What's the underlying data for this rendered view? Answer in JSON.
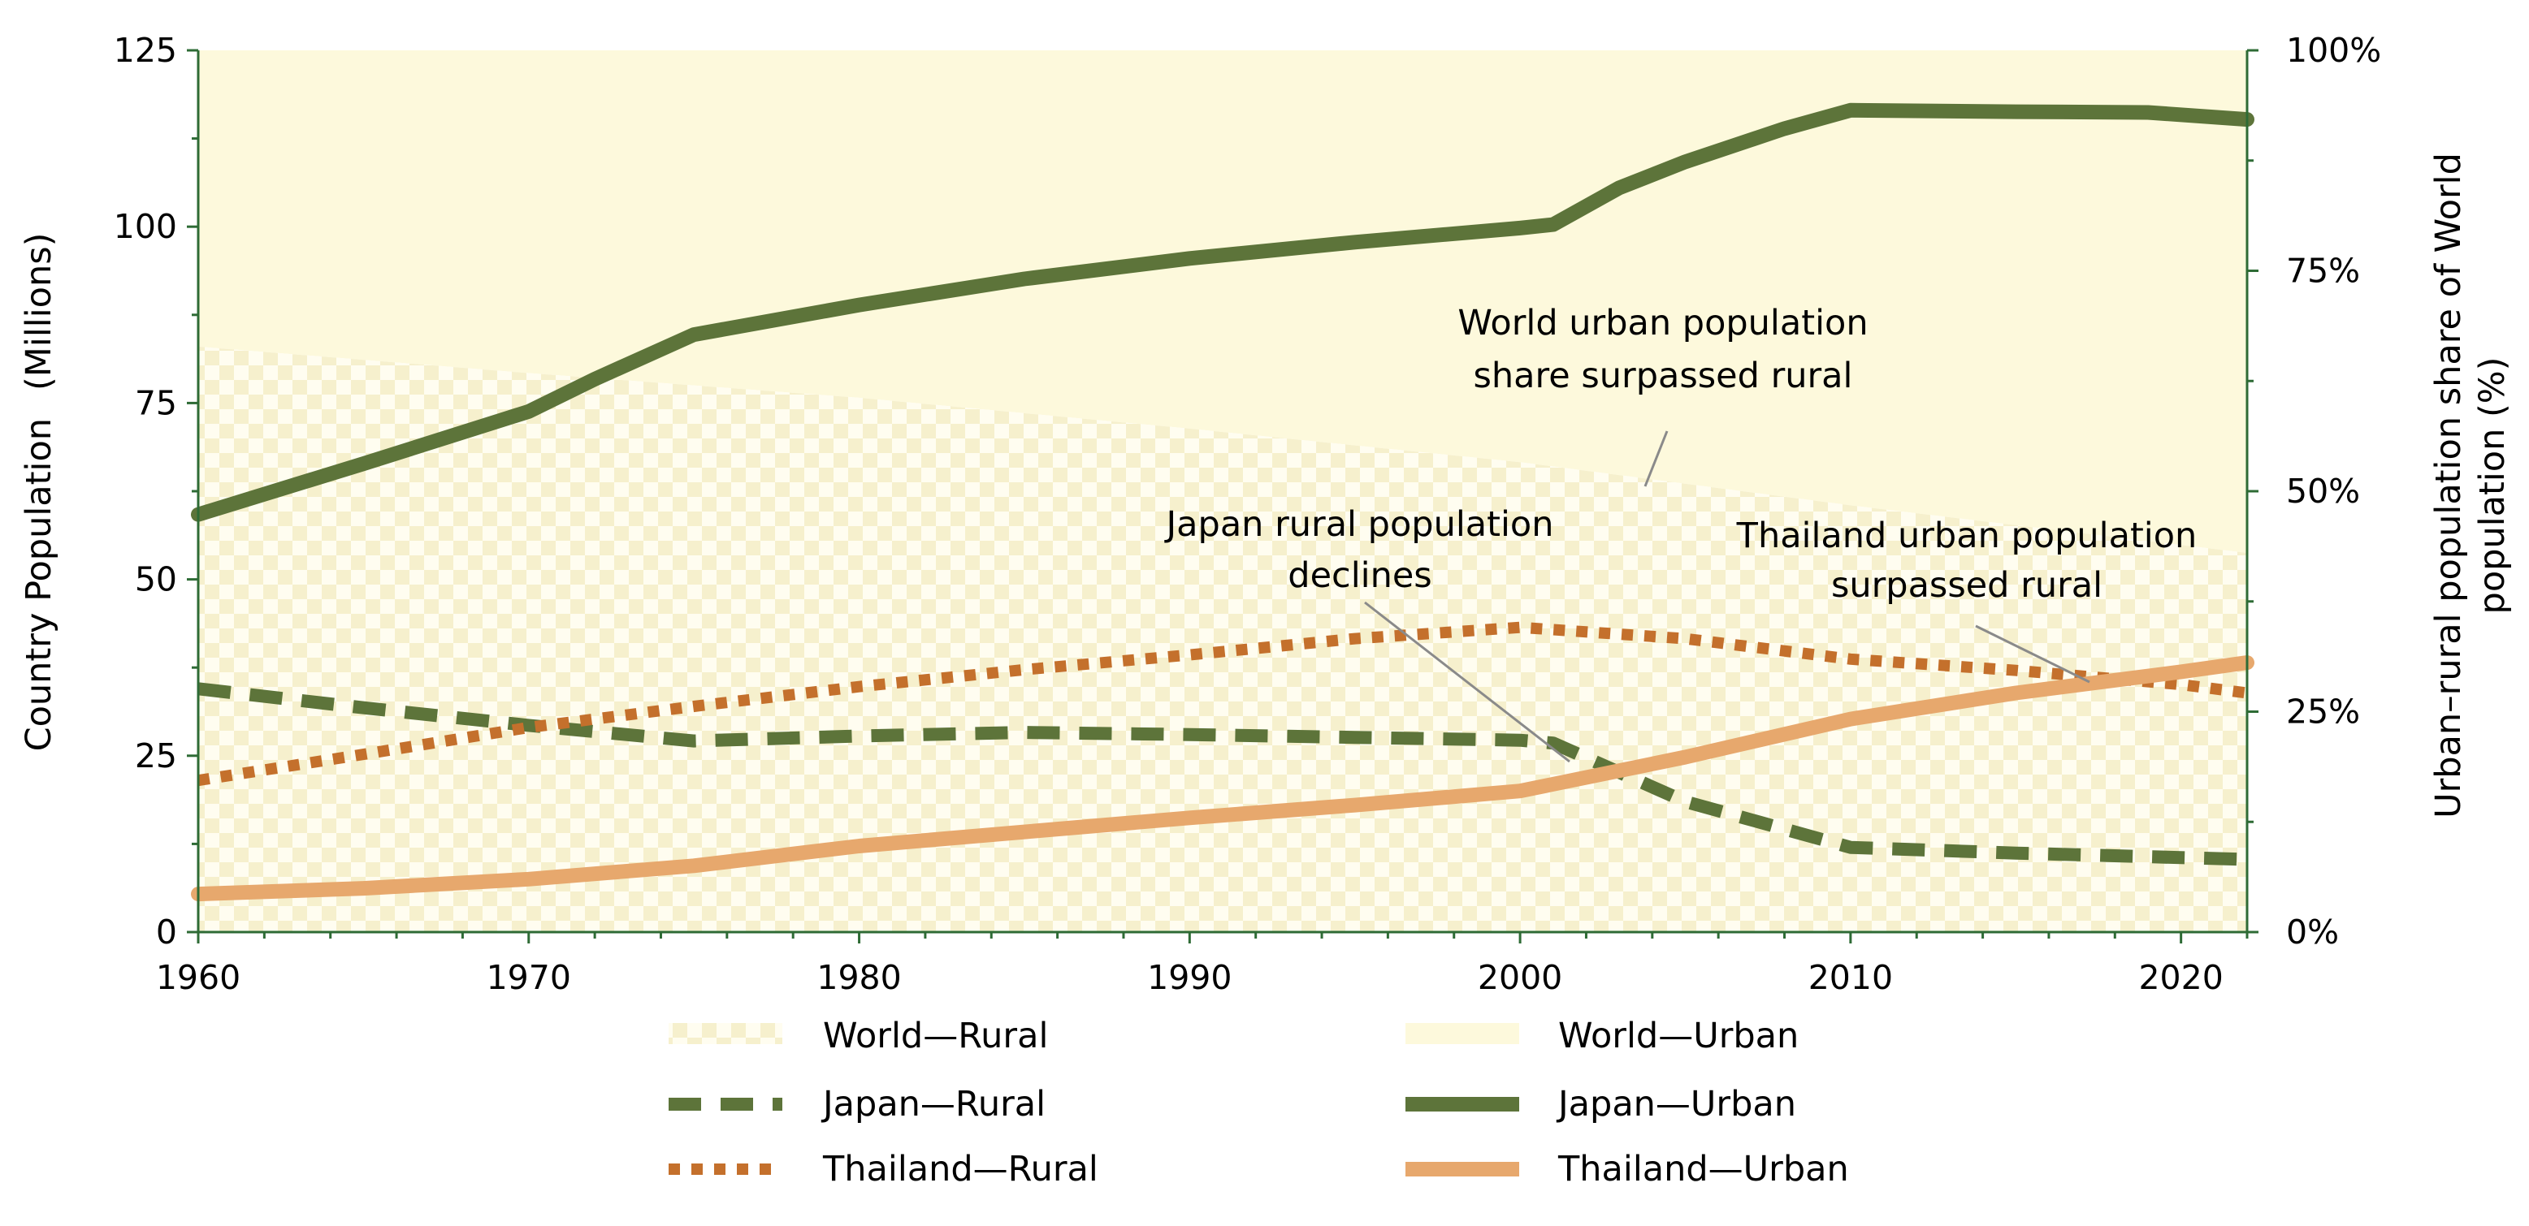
{
  "chart_data": {
    "type": "line",
    "x_range": [
      1960,
      2022
    ],
    "x_ticks": [
      "1960",
      "1970",
      "1980",
      "1990",
      "2000",
      "2010",
      "2020"
    ],
    "y_left": {
      "label_part1": "Country Population",
      "label_part2": "(Millions)",
      "range": [
        0,
        125
      ],
      "ticks": [
        "0",
        "25",
        "50",
        "75",
        "100",
        "125"
      ]
    },
    "y_right": {
      "label_line1": "Urban–rural population share of World",
      "label_line2": "population (%)",
      "range": [
        0,
        100
      ],
      "ticks": [
        "0%",
        "25%",
        "50%",
        "75%",
        "100%"
      ]
    },
    "areas": [
      {
        "name": "World—Rural",
        "axis": "right",
        "x": [
          1960,
          1970,
          1980,
          1990,
          2000,
          2010,
          2022
        ],
        "values": [
          66.4,
          63.4,
          60.6,
          57.1,
          53.3,
          48.4,
          43.0
        ]
      },
      {
        "name": "World—Urban",
        "axis": "right",
        "x": [
          1960,
          1970,
          1980,
          1990,
          2000,
          2010,
          2022
        ],
        "values": [
          33.6,
          36.6,
          39.4,
          42.9,
          46.7,
          51.6,
          57.0
        ]
      }
    ],
    "series": [
      {
        "name": "Japan—Rural",
        "axis": "left",
        "x": [
          1960,
          1965,
          1970,
          1975,
          1980,
          1985,
          1990,
          1995,
          2000,
          2001,
          2005,
          2010,
          2015,
          2022
        ],
        "values": [
          34.5,
          31.8,
          29.3,
          27.1,
          27.8,
          28.3,
          28.0,
          27.6,
          27.2,
          26.8,
          18.5,
          12.0,
          11.2,
          10.3
        ]
      },
      {
        "name": "Japan—Urban",
        "axis": "left",
        "x": [
          1960,
          1965,
          1970,
          1972,
          1975,
          1980,
          1985,
          1990,
          1995,
          2000,
          2001,
          2003,
          2005,
          2008,
          2010,
          2015,
          2019,
          2022
        ],
        "values": [
          59.2,
          66.4,
          73.8,
          78.4,
          84.7,
          88.9,
          92.6,
          95.5,
          97.8,
          99.8,
          100.3,
          105.5,
          109.2,
          113.9,
          116.5,
          116.3,
          116.2,
          115.2
        ]
      },
      {
        "name": "Thailand—Rural",
        "axis": "left",
        "x": [
          1960,
          1965,
          1970,
          1975,
          1980,
          1985,
          1990,
          1995,
          2000,
          2005,
          2010,
          2015,
          2020,
          2022
        ],
        "values": [
          21.5,
          25.2,
          29.0,
          32.0,
          34.8,
          37.2,
          39.3,
          41.6,
          43.2,
          41.6,
          38.7,
          37.1,
          35.1,
          33.9
        ]
      },
      {
        "name": "Thailand—Urban",
        "axis": "left",
        "x": [
          1960,
          1965,
          1970,
          1975,
          1980,
          1985,
          1990,
          1995,
          2000,
          2005,
          2010,
          2015,
          2020,
          2022
        ],
        "values": [
          5.4,
          6.2,
          7.5,
          9.4,
          12.2,
          14.2,
          16.2,
          18.0,
          20.0,
          24.8,
          30.2,
          33.9,
          36.9,
          38.2
        ]
      }
    ],
    "annotations": [
      {
        "name": "world-urban",
        "lines": [
          "World urban population",
          "share surpassed rural"
        ]
      },
      {
        "name": "japan-rural",
        "lines": [
          "Japan rural population",
          "declines"
        ]
      },
      {
        "name": "thailand-urban",
        "lines": [
          "Thailand urban population",
          "surpassed rural"
        ]
      }
    ],
    "legend": [
      "World—Rural",
      "World—Urban",
      "Japan—Rural",
      "Japan—Urban",
      "Thailand—Rural",
      "Thailand—Urban"
    ]
  },
  "colors": {
    "japan": "#5d743a",
    "thailand_rural": "#c4702c",
    "thailand_urban": "#e7a86d",
    "world_urban": "#fdf9dc",
    "world_rural_check": "#f6f0cd",
    "axis": "#2e6b35",
    "leader": "#8a8a8a"
  }
}
